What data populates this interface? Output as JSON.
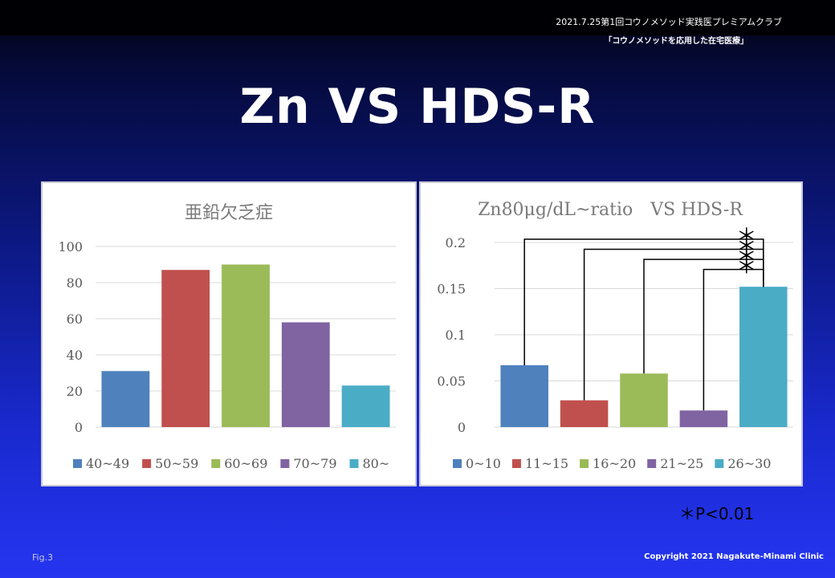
{
  "header": {
    "line1": "2021.7.25第1回コウノメソッド実践医プレミアムクラブ",
    "line2": "「コウノメソッドを応用した在宅医療」"
  },
  "slide_title": "Zn VS HDS-R",
  "footer": {
    "fig_label": "Fig.3",
    "copyright": "Copyright 2021 Nagakute-Minami Clinic"
  },
  "significance_note": "＊P<0.01",
  "significance_mark": "＊",
  "colors": {
    "series": [
      "#4f81bd",
      "#c0504d",
      "#9bbb59",
      "#8064a2",
      "#4bacc6"
    ],
    "background_top": "#000004",
    "background_bottom": "#2535f0"
  },
  "chart_data": [
    {
      "type": "bar",
      "title": "亜鉛欠乏症",
      "categories": [
        "40~49",
        "50~59",
        "60~69",
        "70~79",
        "80~"
      ],
      "values": [
        31,
        87,
        90,
        58,
        23
      ],
      "ylim": [
        0,
        100
      ],
      "yticks": [
        0,
        20,
        40,
        60,
        80,
        100
      ],
      "ytick_labels": [
        "0",
        "20",
        "40",
        "60",
        "80",
        "100"
      ],
      "grid": true,
      "legend": "bottom"
    },
    {
      "type": "bar",
      "title": "Zn80μg/dL~ratio　VS HDS-R",
      "categories": [
        "0~10",
        "11~15",
        "16~20",
        "21~25",
        "26~30"
      ],
      "values": [
        0.067,
        0.029,
        0.058,
        0.018,
        0.152
      ],
      "ylim": [
        0,
        0.2
      ],
      "yticks": [
        0,
        0.05,
        0.1,
        0.15,
        0.2
      ],
      "ytick_labels": [
        "0",
        "0.05",
        "0.1",
        "0.15",
        "0.2"
      ],
      "grid": true,
      "legend": "bottom",
      "significance": [
        {
          "compare": [
            "0~10",
            "26~30"
          ],
          "mark": "＊"
        },
        {
          "compare": [
            "11~15",
            "26~30"
          ],
          "mark": "＊"
        },
        {
          "compare": [
            "16~20",
            "26~30"
          ],
          "mark": "＊"
        },
        {
          "compare": [
            "21~25",
            "26~30"
          ],
          "mark": "＊"
        }
      ]
    }
  ]
}
